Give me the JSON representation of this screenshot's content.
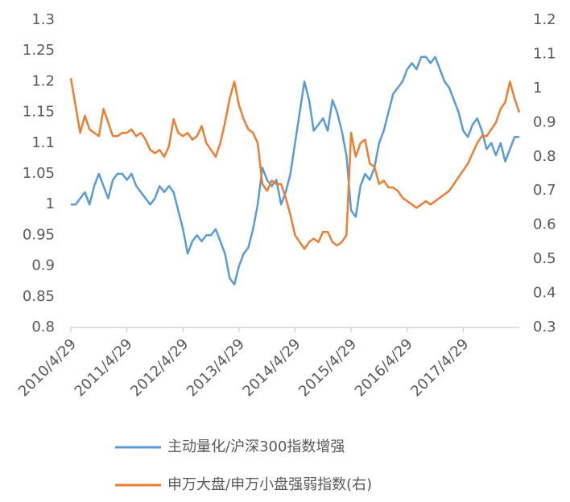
{
  "chart_data": {
    "type": "line",
    "categories": [
      "2010/4/29",
      null,
      null,
      null,
      null,
      null,
      null,
      null,
      null,
      null,
      null,
      null,
      "2011/4/29",
      null,
      null,
      null,
      null,
      null,
      null,
      null,
      null,
      null,
      null,
      null,
      "2012/4/29",
      null,
      null,
      null,
      null,
      null,
      null,
      null,
      null,
      null,
      null,
      null,
      "2013/4/29",
      null,
      null,
      null,
      null,
      null,
      null,
      null,
      null,
      null,
      null,
      null,
      "2014/4/29",
      null,
      null,
      null,
      null,
      null,
      null,
      null,
      null,
      null,
      null,
      null,
      "2015/4/29",
      null,
      null,
      null,
      null,
      null,
      null,
      null,
      null,
      null,
      null,
      null,
      "2016/4/29",
      null,
      null,
      null,
      null,
      null,
      null,
      null,
      null,
      null,
      null,
      null,
      "2017/4/29",
      null,
      null,
      null,
      null,
      null,
      null,
      null,
      null,
      null,
      null,
      null,
      null
    ],
    "series": [
      {
        "name": "主动量化/沪深300指数增强",
        "color": "#5b9bd5",
        "axis": "y",
        "values": [
          1.0,
          1.0,
          1.01,
          1.02,
          1.0,
          1.03,
          1.05,
          1.03,
          1.01,
          1.04,
          1.05,
          1.05,
          1.04,
          1.05,
          1.03,
          1.02,
          1.01,
          1.0,
          1.01,
          1.03,
          1.02,
          1.03,
          1.02,
          0.99,
          0.96,
          0.92,
          0.94,
          0.95,
          0.94,
          0.95,
          0.95,
          0.96,
          0.94,
          0.92,
          0.88,
          0.87,
          0.9,
          0.92,
          0.93,
          0.96,
          1.0,
          1.06,
          1.04,
          1.03,
          1.04,
          1.0,
          1.02,
          1.05,
          1.1,
          1.15,
          1.2,
          1.17,
          1.12,
          1.13,
          1.14,
          1.12,
          1.17,
          1.15,
          1.12,
          1.08,
          0.99,
          0.98,
          1.03,
          1.05,
          1.04,
          1.06,
          1.1,
          1.12,
          1.15,
          1.18,
          1.19,
          1.2,
          1.22,
          1.23,
          1.22,
          1.24,
          1.24,
          1.23,
          1.24,
          1.22,
          1.2,
          1.19,
          1.17,
          1.15,
          1.12,
          1.11,
          1.13,
          1.14,
          1.12,
          1.09,
          1.1,
          1.08,
          1.1,
          1.07,
          1.09,
          1.11,
          1.11
        ]
      },
      {
        "name": "申万大盘/申万小盘强弱指数(右)",
        "color": "#ed7d31",
        "axis": "y2",
        "values": [
          1.03,
          0.95,
          0.87,
          0.92,
          0.88,
          0.87,
          0.86,
          0.94,
          0.9,
          0.86,
          0.86,
          0.87,
          0.87,
          0.88,
          0.86,
          0.87,
          0.85,
          0.82,
          0.81,
          0.82,
          0.8,
          0.83,
          0.91,
          0.87,
          0.86,
          0.87,
          0.85,
          0.86,
          0.89,
          0.84,
          0.82,
          0.8,
          0.84,
          0.9,
          0.97,
          1.02,
          0.95,
          0.91,
          0.88,
          0.87,
          0.84,
          0.72,
          0.7,
          0.73,
          0.72,
          0.72,
          0.68,
          0.63,
          0.57,
          0.55,
          0.53,
          0.55,
          0.56,
          0.55,
          0.58,
          0.58,
          0.55,
          0.54,
          0.55,
          0.57,
          0.87,
          0.8,
          0.84,
          0.85,
          0.78,
          0.77,
          0.72,
          0.73,
          0.71,
          0.71,
          0.7,
          0.68,
          0.67,
          0.66,
          0.65,
          0.66,
          0.67,
          0.66,
          0.67,
          0.68,
          0.69,
          0.7,
          0.72,
          0.74,
          0.76,
          0.78,
          0.81,
          0.84,
          0.86,
          0.86,
          0.88,
          0.9,
          0.94,
          0.96,
          1.02,
          0.97,
          0.93
        ]
      }
    ],
    "ylim": [
      0.8,
      1.3
    ],
    "yticks": [
      0.8,
      0.85,
      0.9,
      0.95,
      1,
      1.05,
      1.1,
      1.15,
      1.2,
      1.25,
      1.3
    ],
    "y2lim": [
      0.3,
      1.2
    ],
    "y2ticks": [
      0.3,
      0.4,
      0.5,
      0.6,
      0.7,
      0.8,
      0.9,
      1,
      1.1,
      1.2
    ],
    "grid": false
  }
}
